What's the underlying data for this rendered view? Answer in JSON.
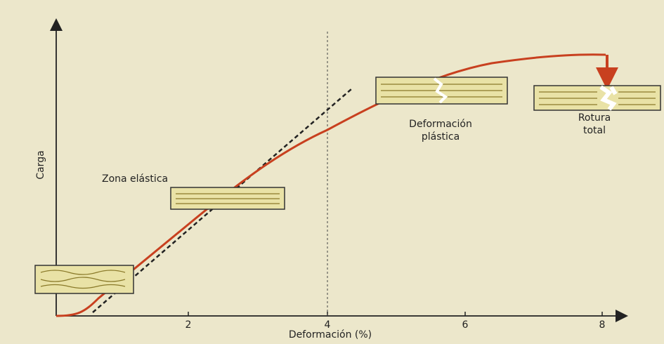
{
  "y_axis_label": "Carga",
  "x_axis_label": "Deformación (%)",
  "x_ticks": [
    "2",
    "4",
    "6",
    "8"
  ],
  "annotations": {
    "elastic": [
      "Zona elástica"
    ],
    "plastic": [
      "Deformación",
      "plástica"
    ],
    "rupture": [
      "Rotura",
      "total"
    ]
  }
}
